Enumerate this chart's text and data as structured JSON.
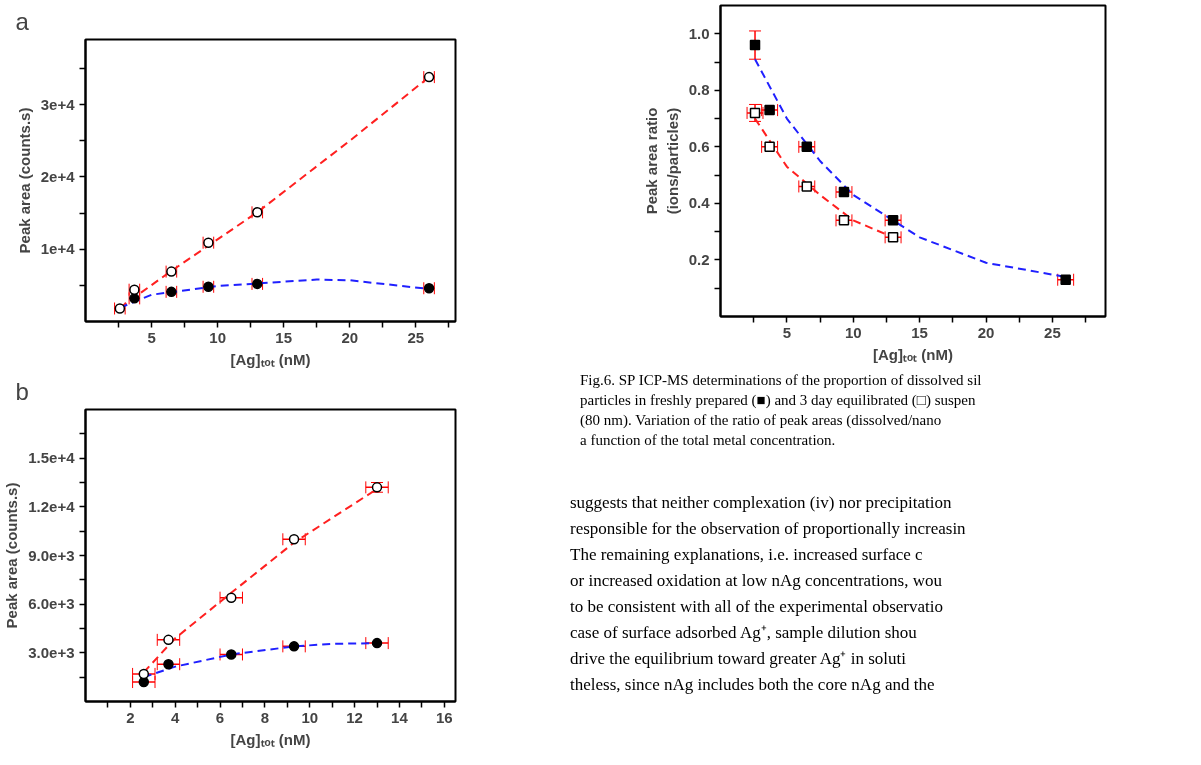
{
  "chart_data": [
    {
      "type": "scatter",
      "title": "a",
      "xlabel": "[Ag]ₜₒₜ (nM)",
      "ylabel": "Peak area (counts.s)",
      "xlim": [
        0,
        28
      ],
      "ylim": [
        0,
        39000
      ],
      "xticks": [
        {
          "value": 2.5,
          "label": null
        },
        5,
        {
          "value": 7.5,
          "label": null
        },
        10,
        {
          "value": 12.5,
          "label": null
        },
        15,
        {
          "value": 17.5,
          "label": null
        },
        20,
        {
          "value": 22.5,
          "label": null
        },
        25,
        {
          "value": 27.5,
          "label": null
        }
      ],
      "yticks": [
        {
          "value": 5000,
          "label": null
        },
        {
          "value": 10000,
          "label": "1e+4"
        },
        {
          "value": 15000,
          "label": null
        },
        {
          "value": 20000,
          "label": "2e+4"
        },
        {
          "value": 25000,
          "label": null
        },
        {
          "value": 30000,
          "label": "3e+4"
        },
        {
          "value": 35000,
          "label": null
        }
      ],
      "series": [
        {
          "type": "line",
          "color": "#ff2020",
          "line_style": "dashed",
          "x": [
            2.6,
            6.5,
            13,
            20,
            26
          ],
          "values": [
            1900,
            7000,
            15100,
            25000,
            33800
          ]
        },
        {
          "type": "line",
          "color": "#2020ff",
          "line_style": "dashed",
          "x": [
            2.6,
            5,
            10,
            15,
            17.5,
            20,
            26
          ],
          "values": [
            1900,
            3700,
            4900,
            5500,
            5800,
            5700,
            4500
          ]
        },
        {
          "color": "#000000",
          "marker": "circle",
          "x": [
            3.7,
            6.5,
            9.3,
            13,
            26
          ],
          "values": [
            3200,
            4100,
            4800,
            5200,
            4600
          ],
          "xerrors": [
            0.4,
            0.4,
            0.4,
            0.4,
            0.4
          ]
        },
        {
          "color": "#ffffff",
          "marker": "circle",
          "x": [
            2.6,
            3.7,
            6.5,
            9.3,
            13,
            26
          ],
          "values": [
            1800,
            4400,
            6900,
            10900,
            15100,
            33800
          ],
          "xerrors": [
            0.4,
            0.4,
            0.4,
            0.4,
            0.4,
            0.4
          ]
        }
      ]
    },
    {
      "type": "scatter",
      "title": "b",
      "xlabel": "[Ag]ₜₒₜ (nM)",
      "ylabel": "Peak area (counts.s)",
      "xlim": [
        0,
        16.5
      ],
      "ylim": [
        0,
        18000
      ],
      "xticks": [
        {
          "value": 1,
          "label": null
        },
        2,
        {
          "value": 3,
          "label": null
        },
        4,
        {
          "value": 5,
          "label": null
        },
        6,
        {
          "value": 7,
          "label": null
        },
        8,
        {
          "value": 9,
          "label": null
        },
        10,
        {
          "value": 11,
          "label": null
        },
        12,
        {
          "value": 13,
          "label": null
        },
        14,
        {
          "value": 15,
          "label": null
        },
        16
      ],
      "yticks": [
        {
          "value": 1500,
          "label": null
        },
        {
          "value": 3000,
          "label": "3.0e+3"
        },
        {
          "value": 4500,
          "label": null
        },
        {
          "value": 6000,
          "label": "6.0e+3"
        },
        {
          "value": 7500,
          "label": null
        },
        {
          "value": 9000,
          "label": "9.0e+3"
        },
        {
          "value": 10500,
          "label": null
        },
        {
          "value": 12000,
          "label": "1.2e+4"
        },
        {
          "value": 13500,
          "label": null
        },
        {
          "value": 15000,
          "label": "1.5e+4"
        },
        {
          "value": 16500,
          "label": null
        }
      ],
      "series": [
        {
          "type": "line",
          "color": "#ff2020",
          "line_style": "dashed",
          "x": [
            2.6,
            4,
            6.5,
            9.3,
            13
          ],
          "values": [
            1800,
            3900,
            6700,
            9800,
            13100
          ]
        },
        {
          "type": "line",
          "color": "#2020ff",
          "line_style": "dashed",
          "x": [
            2.6,
            4,
            6.5,
            9.3,
            11,
            13
          ],
          "values": [
            1500,
            2150,
            2900,
            3400,
            3550,
            3600
          ]
        },
        {
          "color": "#000000",
          "marker": "circle",
          "x": [
            2.6,
            3.7,
            6.5,
            9.3,
            13
          ],
          "values": [
            1200,
            2300,
            2900,
            3400,
            3600
          ],
          "xerrors": [
            0.5,
            0.5,
            0.5,
            0.5,
            0.5
          ]
        },
        {
          "color": "#ffffff",
          "marker": "circle",
          "x": [
            2.6,
            3.7,
            6.5,
            9.3,
            13
          ],
          "values": [
            1700,
            3800,
            6400,
            10000,
            13200
          ],
          "errors": [
            null,
            null,
            null,
            null,
            300
          ],
          "xerrors": [
            0.5,
            0.5,
            0.5,
            0.5,
            0.5
          ]
        }
      ]
    },
    {
      "type": "scatter",
      "xlabel": "[Ag]ₜₒₜ (nM)",
      "ylabel": "Peak area ratio\n(ions/particles)",
      "xlim": [
        0,
        29
      ],
      "ylim": [
        0,
        1.1
      ],
      "xticks": [
        {
          "value": 2.5,
          "label": null
        },
        5,
        {
          "value": 7.5,
          "label": null
        },
        10,
        {
          "value": 12.5,
          "label": null
        },
        15,
        {
          "value": 17.5,
          "label": null
        },
        20,
        {
          "value": 22.5,
          "label": null
        },
        25,
        {
          "value": 27.5,
          "label": null
        }
      ],
      "yticks": [
        {
          "value": 0.1,
          "label": null
        },
        0.2,
        {
          "value": 0.3,
          "label": null
        },
        0.4,
        {
          "value": 0.5,
          "label": null
        },
        0.6,
        {
          "value": 0.7,
          "label": null
        },
        0.8,
        {
          "value": 0.9,
          "label": null
        },
        {
          "value": 1.0,
          "label": "1.0"
        }
      ],
      "annotations": [
        "Fig.6. SP ICP-MS determinations of the proportion of dissolved sil",
        "particles in freshly prepared (■) and 3 day equilibrated (□) suspen",
        "(80 nm). Variation of the ratio of peak areas (dissolved/nano",
        "a function of the total metal concentration."
      ],
      "series": [
        {
          "type": "line",
          "color": "#2020ff",
          "line_style": "dashed",
          "x": [
            2.6,
            5,
            7.5,
            10,
            15,
            20,
            26
          ],
          "values": [
            0.91,
            0.7,
            0.55,
            0.43,
            0.28,
            0.19,
            0.14
          ]
        },
        {
          "type": "line",
          "color": "#ff2020",
          "line_style": "dashed",
          "x": [
            2.6,
            5,
            7.5,
            10,
            13
          ],
          "values": [
            0.7,
            0.53,
            0.43,
            0.34,
            0.28
          ]
        },
        {
          "color": "#000000",
          "marker": "square",
          "x": [
            2.6,
            3.7,
            6.5,
            9.3,
            13,
            26
          ],
          "values": [
            0.96,
            0.73,
            0.6,
            0.44,
            0.34,
            0.13
          ],
          "errors": [
            0.05,
            null,
            null,
            null,
            null,
            null
          ],
          "xerrors": [
            null,
            0.6,
            0.6,
            0.6,
            0.6,
            0.6
          ]
        },
        {
          "color": "#ffffff",
          "marker": "square",
          "x": [
            2.6,
            3.7,
            6.5,
            9.3,
            13
          ],
          "values": [
            0.72,
            0.6,
            0.46,
            0.34,
            0.28
          ],
          "errors": [
            0.03,
            null,
            null,
            null,
            null
          ],
          "xerrors": [
            0.6,
            0.6,
            0.6,
            0.6,
            0.6
          ]
        }
      ]
    },
    {
      "type": "other",
      "annotations": [
        "suggests that neither complexation (iv) nor precipitation",
        "responsible for the observation of proportionally increasin",
        "The remaining explanations, i.e. increased surface c",
        "or increased oxidation at low nAg concentrations, wou",
        "to be consistent with all of the experimental observatio",
        "case of surface adsorbed Ag⁺, sample dilution shou",
        "drive the equilibrium toward greater Ag⁺ in soluti",
        "theless, since nAg includes both the core nAg and the"
      ]
    }
  ]
}
